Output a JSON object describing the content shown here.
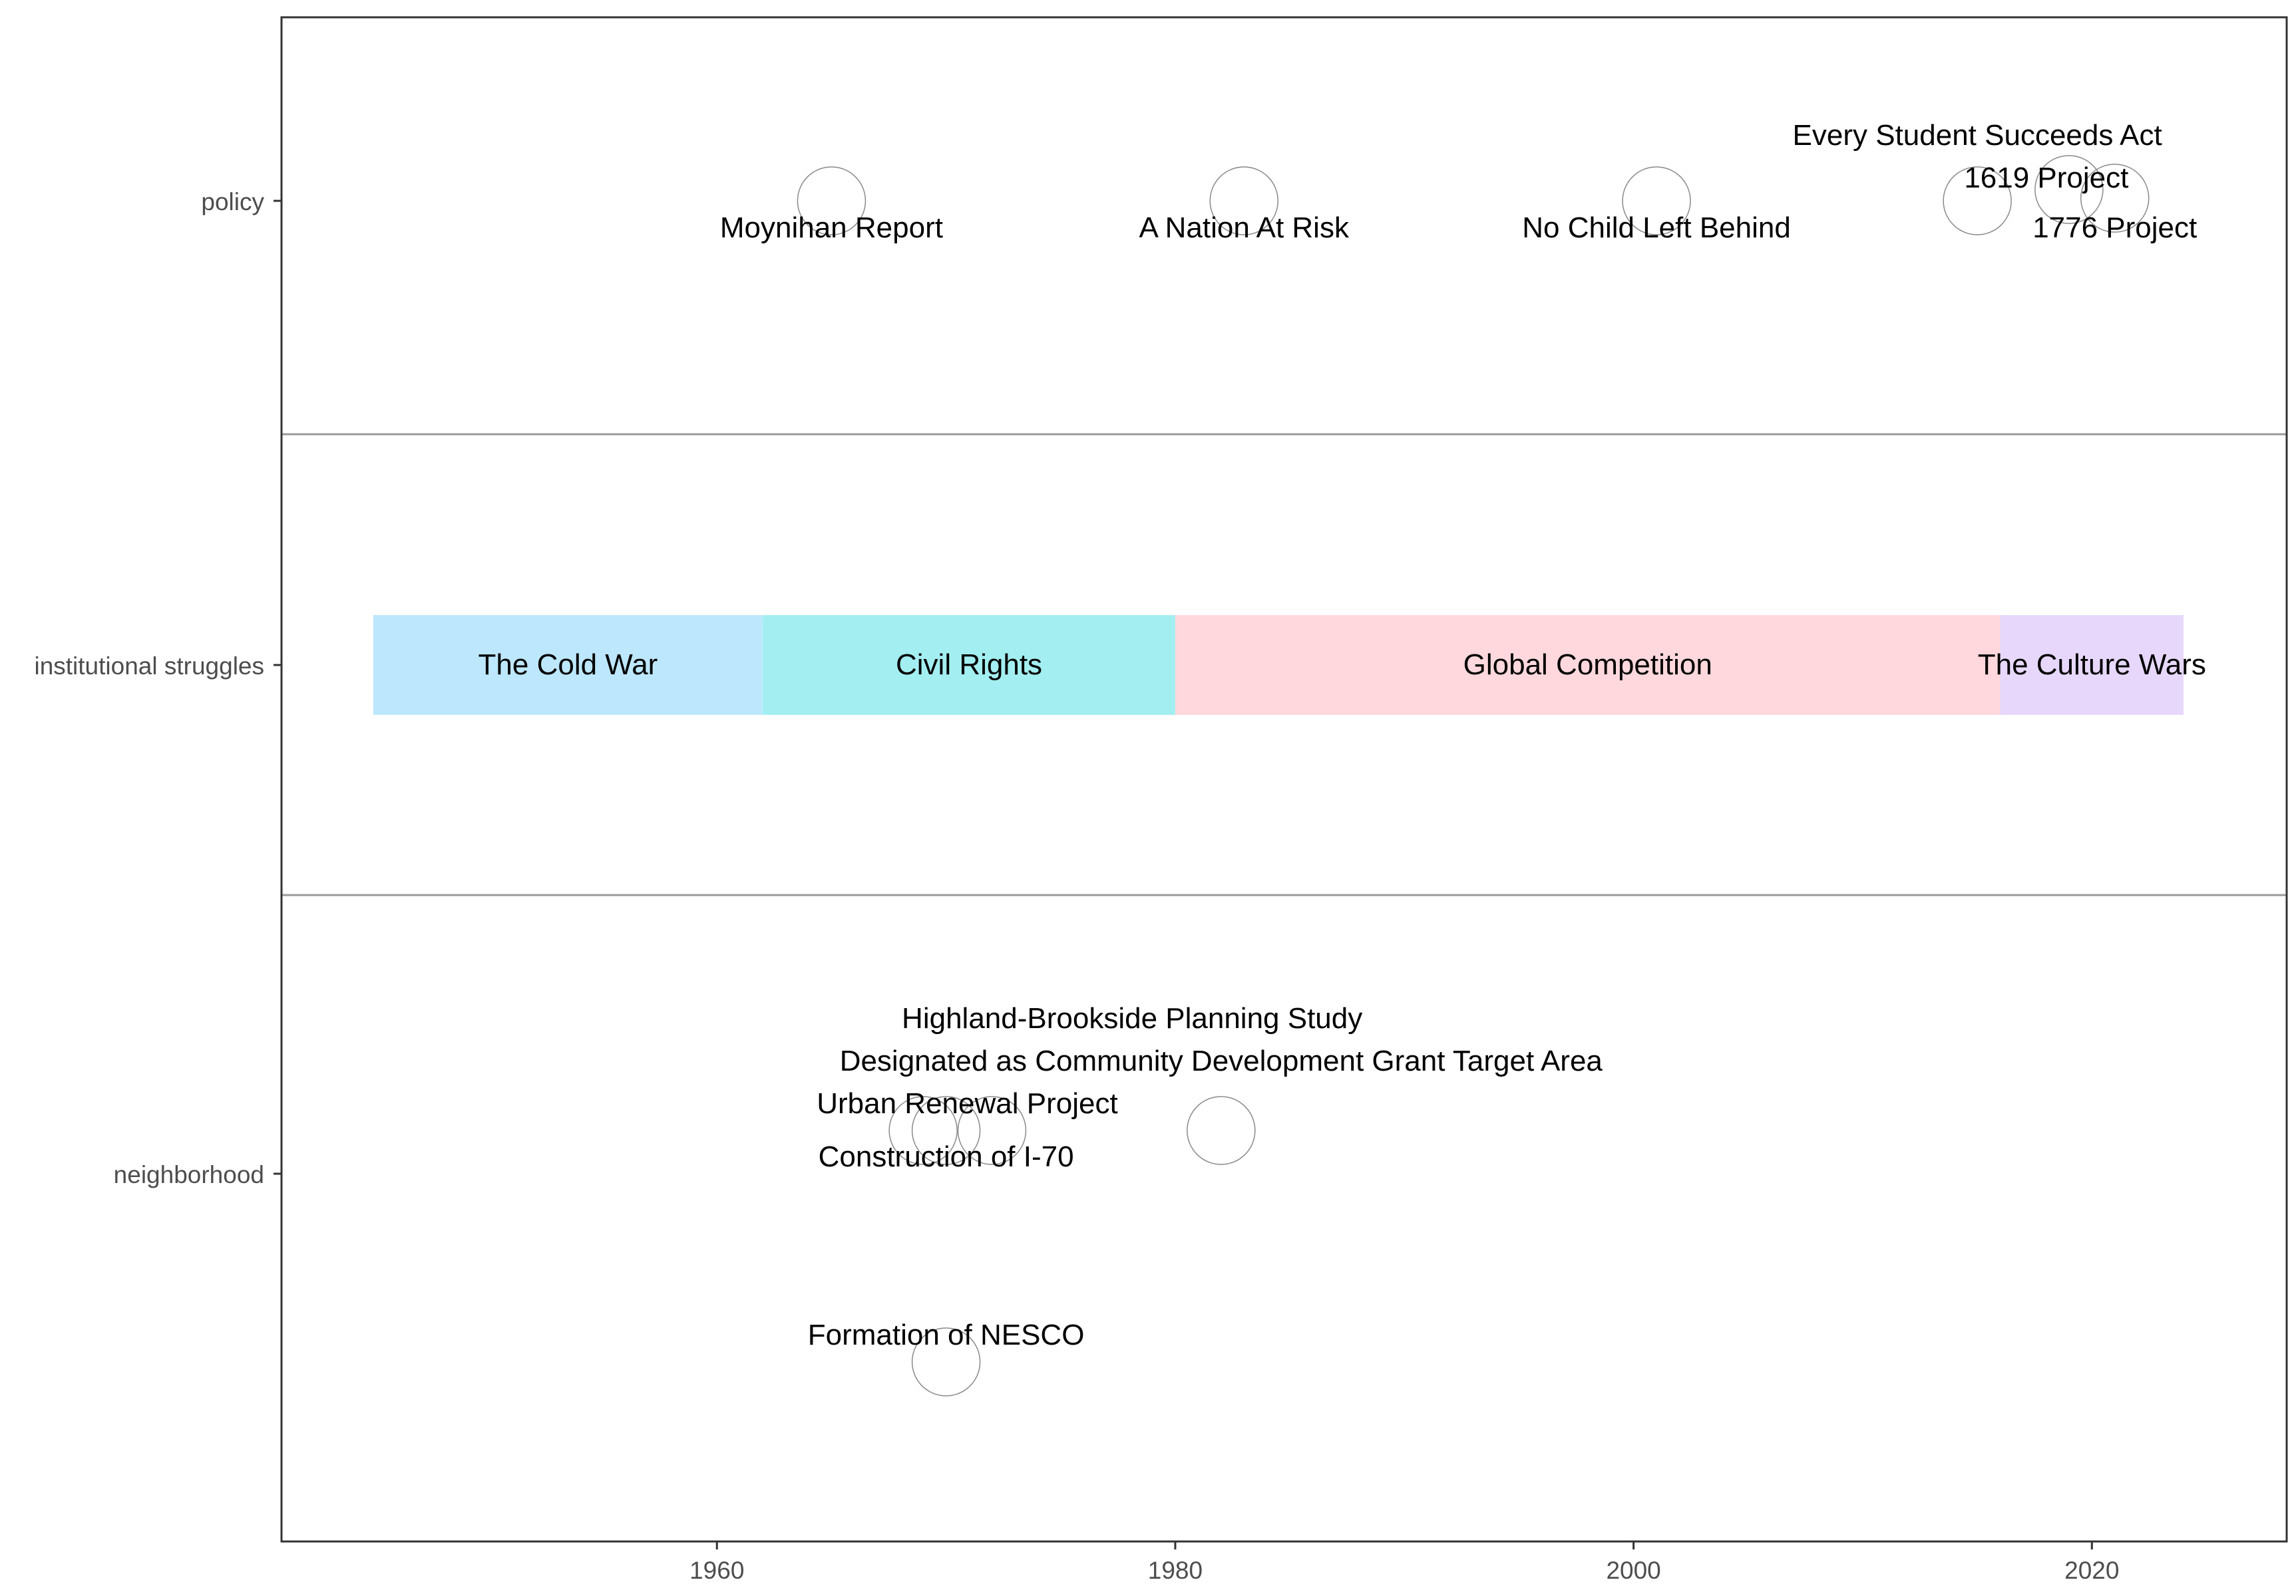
{
  "chart_data": {
    "type": "timeline",
    "title": "",
    "xlabel": "",
    "ylabel": "",
    "xlim": [
      1941,
      2028.5
    ],
    "x_ticks": [
      1960,
      1980,
      2000,
      2020
    ],
    "grid": false,
    "legend": "none",
    "rows": [
      "policy",
      "institutional struggles",
      "neighborhood"
    ],
    "periods": [
      {
        "label": "The Cold War",
        "start": 1945,
        "end": 1962,
        "color": "#BDE7FC"
      },
      {
        "label": "Civil Rights",
        "start": 1962,
        "end": 1980,
        "color": "#A3EEF0"
      },
      {
        "label": "Global Competition",
        "start": 1980,
        "end": 2016,
        "color": "#FED8DC"
      },
      {
        "label": "The Culture Wars",
        "start": 2016,
        "end": 2024,
        "color": "#E7D8FB"
      }
    ],
    "events": [
      {
        "label": "Moynihan Report",
        "year": 1965,
        "row": "policy"
      },
      {
        "label": "A Nation At Risk",
        "year": 1983,
        "row": "policy"
      },
      {
        "label": "No Child Left Behind",
        "year": 2001,
        "row": "policy"
      },
      {
        "label": "Every Student Succeeds Act",
        "year": 2015,
        "row": "policy"
      },
      {
        "label": "1619 Project",
        "year": 2019,
        "row": "policy"
      },
      {
        "label": "1776 Project",
        "year": 2021,
        "row": "policy"
      },
      {
        "label": "Highland-Brookside Planning Study",
        "year": 1969,
        "row": "neighborhood"
      },
      {
        "label": "Designated as Community Development Grant Target Area",
        "year": 1982,
        "row": "neighborhood"
      },
      {
        "label": "Urban Renewal Project",
        "year": 1972,
        "row": "neighborhood"
      },
      {
        "label": "Construction of I-70",
        "year": 1970,
        "row": "neighborhood"
      },
      {
        "label": "Formation of NESCO",
        "year": 1970,
        "row": "neighborhood"
      }
    ]
  }
}
